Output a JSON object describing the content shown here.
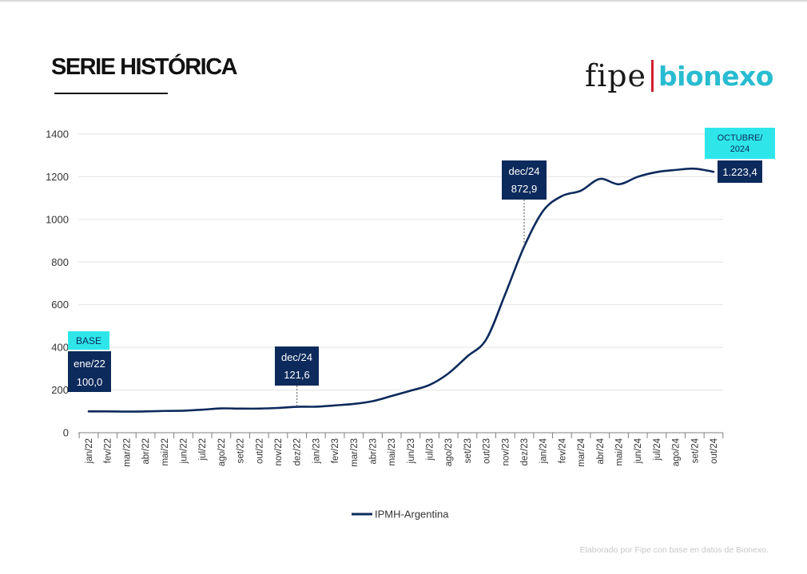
{
  "header": {
    "title": "SERIE HISTÓRICA",
    "logo_left": "fipe",
    "logo_right": "bionexo"
  },
  "footnote": "Elaborado por Fipe con base en datos de Bionexo.",
  "colors": {
    "line": "#0d2a5c",
    "callout_dark": "#0d2a5c",
    "callout_light": "#2ee6ea",
    "brand_red": "#d21f2e",
    "brand_teal": "#28bcd1"
  },
  "chart_data": {
    "type": "line",
    "ylim": [
      0,
      1400
    ],
    "yticks": [
      "0",
      "200",
      "400",
      "600",
      "800",
      "1000",
      "1200",
      "1400"
    ],
    "grid": true,
    "legend": "bottom-center",
    "categories": [
      "jan/22",
      "fev/22",
      "mar/22",
      "abr/22",
      "mai/22",
      "jun/22",
      "jul/22",
      "ago/22",
      "set/22",
      "out/22",
      "nov/22",
      "dez/22",
      "jan/23",
      "fev/23",
      "mar/23",
      "abr/23",
      "mai/23",
      "jun/23",
      "jul/23",
      "ago/23",
      "set/23",
      "out/23",
      "nov/23",
      "dez/23",
      "jan/24",
      "fev/24",
      "mar/24",
      "abr/24",
      "mai/24",
      "jun/24",
      "jul/24",
      "ago/24",
      "set/24",
      "out/24"
    ],
    "series": [
      {
        "name": "IPMH-Argentina",
        "values": [
          100.0,
          100,
          99,
          100,
          102,
          103,
          108,
          114,
          113,
          113,
          116,
          121.6,
          122,
          128,
          135,
          148,
          172,
          197,
          224,
          278,
          358,
          438,
          650,
          872.9,
          1040,
          1110,
          1135,
          1190,
          1165,
          1200,
          1222,
          1232,
          1238,
          1223.4
        ]
      }
    ],
    "annotations": [
      {
        "index": 0,
        "tag": "BASE",
        "label": "ene/22",
        "value": "100,0"
      },
      {
        "index": 11,
        "label": "dec/24",
        "value": "121,6"
      },
      {
        "index": 23,
        "label": "dec/24",
        "value": "872,9"
      },
      {
        "index": 33,
        "tag": "OCTUBRE/\n2024",
        "value": "1.223,4"
      }
    ]
  }
}
